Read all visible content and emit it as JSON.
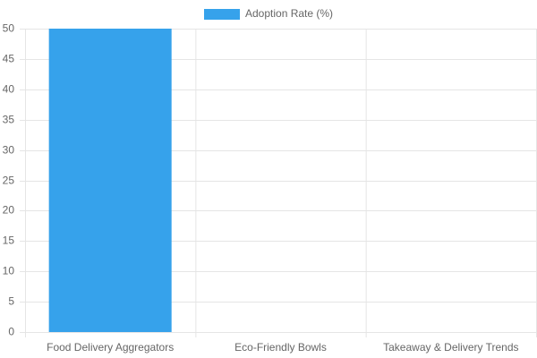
{
  "chart_data": {
    "type": "bar",
    "categories": [
      "Food Delivery Aggregators",
      "Eco-Friendly Bowls",
      "Takeaway & Delivery Trends"
    ],
    "series": [
      {
        "name": "Adoption Rate (%)",
        "color": "#36a2eb",
        "values": [
          50,
          0,
          0
        ]
      }
    ],
    "ylim": [
      0,
      50
    ],
    "yticks": [
      0,
      5,
      10,
      15,
      20,
      25,
      30,
      35,
      40,
      45,
      50
    ],
    "grid": true,
    "legend": "top"
  }
}
